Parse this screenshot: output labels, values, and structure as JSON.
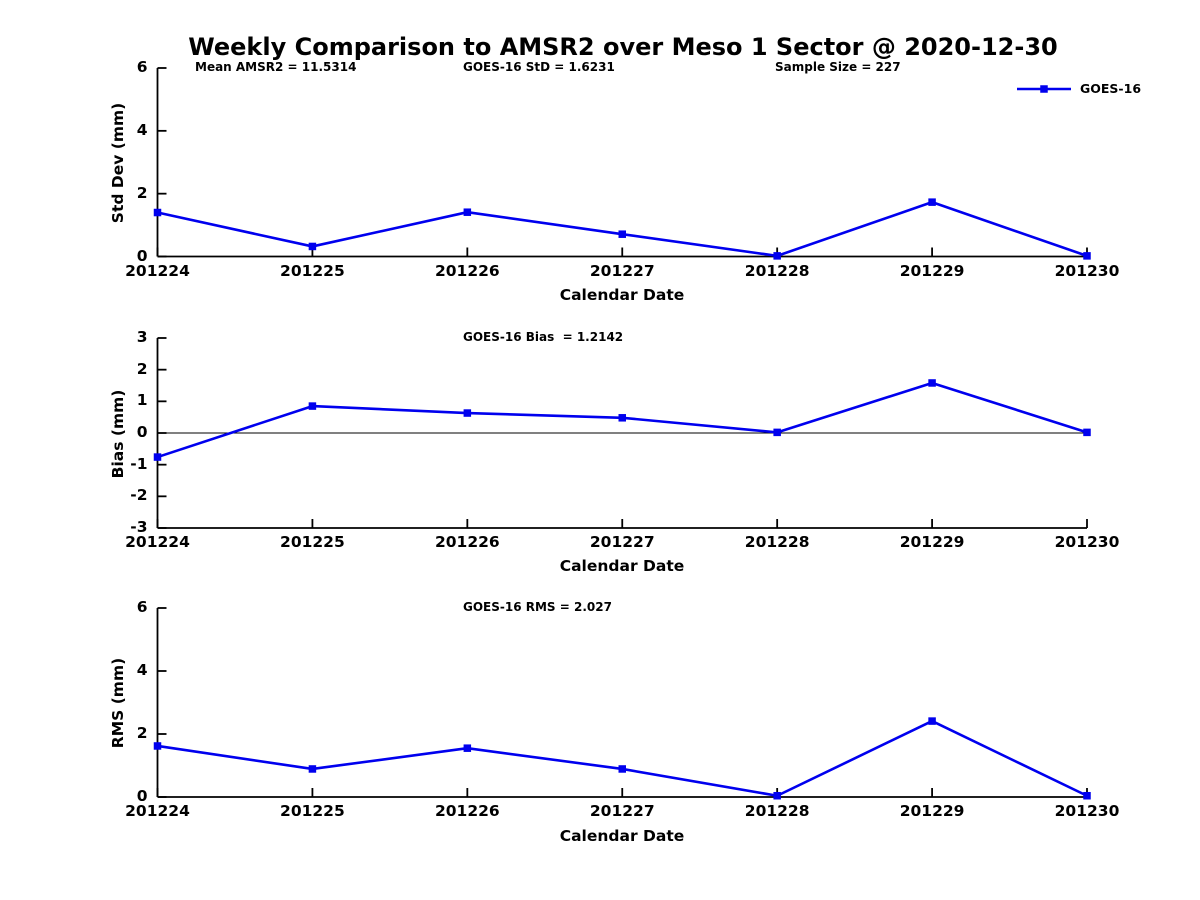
{
  "title": "Weekly Comparison to AMSR2 over Meso 1 Sector @ 2020-12-30",
  "legend": {
    "label": "GOES-16"
  },
  "colors": {
    "line": "#0000EE",
    "axis": "#000000",
    "text": "#000000",
    "background": "#FFFFFF"
  },
  "chart_data": [
    {
      "type": "line",
      "categories": [
        "201224",
        "201225",
        "201226",
        "201227",
        "201228",
        "201229",
        "201230"
      ],
      "series": [
        {
          "name": "GOES-16",
          "values": [
            1.4,
            0.32,
            1.41,
            0.71,
            0.02,
            1.73,
            0.02
          ]
        }
      ],
      "annotations": [
        "Mean AMSR2 = 11.5314",
        "GOES-16 StD = 1.6231",
        "Sample Size = 227"
      ],
      "xlabel": "Calendar Date",
      "ylabel": "Std Dev (mm)",
      "ylim": [
        0,
        6
      ],
      "yticks": [
        0,
        2,
        4,
        6
      ],
      "zero_line": false,
      "grid": false,
      "legend_entries": [
        "GOES-16"
      ],
      "legend_position": "top-right",
      "marker": "square"
    },
    {
      "type": "line",
      "categories": [
        "201224",
        "201225",
        "201226",
        "201227",
        "201228",
        "201229",
        "201230"
      ],
      "series": [
        {
          "name": "GOES-16",
          "values": [
            -0.76,
            0.85,
            0.63,
            0.48,
            0.02,
            1.58,
            0.02
          ]
        }
      ],
      "annotations": [
        "GOES-16 Bias  = 1.2142"
      ],
      "xlabel": "Calendar Date",
      "ylabel": "Bias (mm)",
      "ylim": [
        -3,
        3
      ],
      "yticks": [
        -3,
        -2,
        -1,
        0,
        1,
        2,
        3
      ],
      "zero_line": true,
      "grid": false,
      "marker": "square"
    },
    {
      "type": "line",
      "categories": [
        "201224",
        "201225",
        "201226",
        "201227",
        "201228",
        "201229",
        "201230"
      ],
      "series": [
        {
          "name": "GOES-16",
          "values": [
            1.62,
            0.89,
            1.55,
            0.89,
            0.04,
            2.41,
            0.04
          ]
        }
      ],
      "annotations": [
        "GOES-16 RMS = 2.027"
      ],
      "xlabel": "Calendar Date",
      "ylabel": "RMS (mm)",
      "ylim": [
        0,
        6
      ],
      "yticks": [
        0,
        2,
        4,
        6
      ],
      "zero_line": false,
      "grid": false,
      "marker": "square"
    }
  ]
}
